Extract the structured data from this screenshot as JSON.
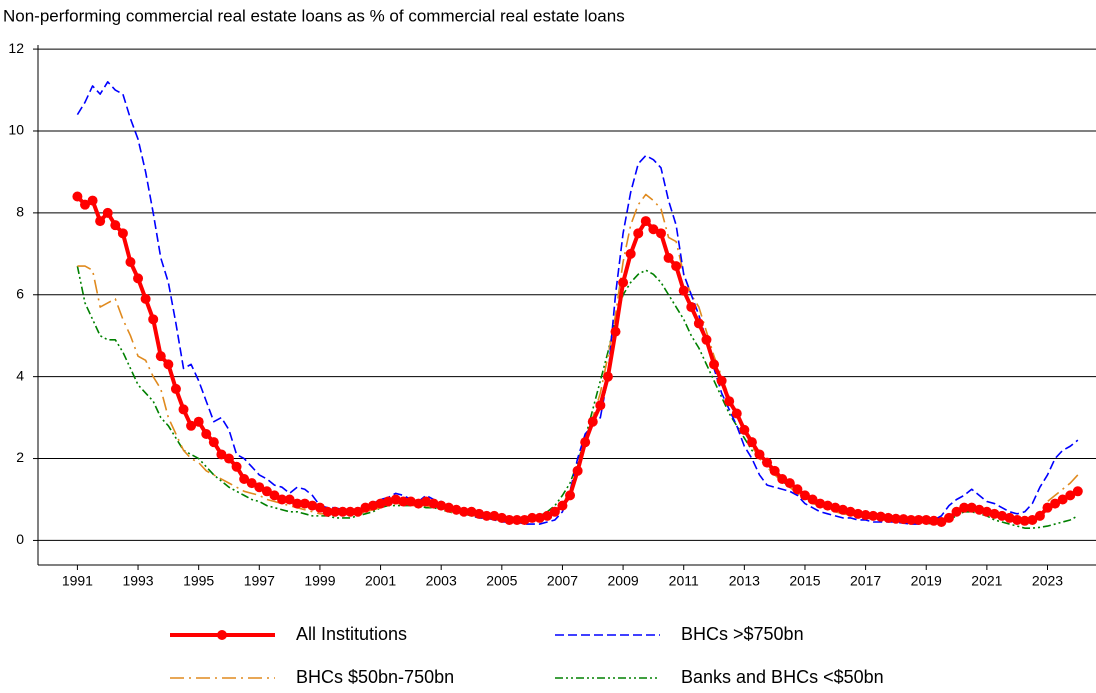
{
  "chart_data": {
    "type": "line",
    "title": "Non-performing commercial real estate loans as % of commercial real estate loans",
    "x": [
      1991,
      1991.25,
      1991.5,
      1991.75,
      1992,
      1992.25,
      1992.5,
      1992.75,
      1993,
      1993.25,
      1993.5,
      1993.75,
      1994,
      1994.25,
      1994.5,
      1994.75,
      1995,
      1995.25,
      1995.5,
      1995.75,
      1996,
      1996.25,
      1996.5,
      1996.75,
      1997,
      1997.25,
      1997.5,
      1997.75,
      1998,
      1998.25,
      1998.5,
      1998.75,
      1999,
      1999.25,
      1999.5,
      1999.75,
      2000,
      2000.25,
      2000.5,
      2000.75,
      2001,
      2001.25,
      2001.5,
      2001.75,
      2002,
      2002.25,
      2002.5,
      2002.75,
      2003,
      2003.25,
      2003.5,
      2003.75,
      2004,
      2004.25,
      2004.5,
      2004.75,
      2005,
      2005.25,
      2005.5,
      2005.75,
      2006,
      2006.25,
      2006.5,
      2006.75,
      2007,
      2007.25,
      2007.5,
      2007.75,
      2008,
      2008.25,
      2008.5,
      2008.75,
      2009,
      2009.25,
      2009.5,
      2009.75,
      2010,
      2010.25,
      2010.5,
      2010.75,
      2011,
      2011.25,
      2011.5,
      2011.75,
      2012,
      2012.25,
      2012.5,
      2012.75,
      2013,
      2013.25,
      2013.5,
      2013.75,
      2014,
      2014.25,
      2014.5,
      2014.75,
      2015,
      2015.25,
      2015.5,
      2015.75,
      2016,
      2016.25,
      2016.5,
      2016.75,
      2017,
      2017.25,
      2017.5,
      2017.75,
      2018,
      2018.25,
      2018.5,
      2018.75,
      2019,
      2019.25,
      2019.5,
      2019.75,
      2020,
      2020.25,
      2020.5,
      2020.75,
      2021,
      2021.25,
      2021.5,
      2021.75,
      2022,
      2022.25,
      2022.5,
      2022.75,
      2023,
      2023.25,
      2023.5,
      2023.75,
      2024
    ],
    "series": [
      {
        "name": "All Institutions",
        "color": "#ff0000",
        "line_style": "solid",
        "marker": "circle",
        "values": [
          8.4,
          8.2,
          8.3,
          7.8,
          8.0,
          7.7,
          7.5,
          6.8,
          6.4,
          5.9,
          5.4,
          4.5,
          4.3,
          3.7,
          3.2,
          2.8,
          2.9,
          2.6,
          2.4,
          2.1,
          2.0,
          1.8,
          1.5,
          1.4,
          1.3,
          1.2,
          1.1,
          1.0,
          1.0,
          0.9,
          0.9,
          0.85,
          0.8,
          0.7,
          0.7,
          0.7,
          0.7,
          0.7,
          0.8,
          0.85,
          0.9,
          0.95,
          1.0,
          0.95,
          0.95,
          0.9,
          0.95,
          0.9,
          0.85,
          0.8,
          0.75,
          0.7,
          0.7,
          0.65,
          0.6,
          0.6,
          0.55,
          0.5,
          0.5,
          0.5,
          0.55,
          0.55,
          0.6,
          0.7,
          0.85,
          1.1,
          1.7,
          2.4,
          2.9,
          3.3,
          4.0,
          5.1,
          6.3,
          7.0,
          7.5,
          7.8,
          7.6,
          7.5,
          6.9,
          6.7,
          6.1,
          5.7,
          5.3,
          4.9,
          4.3,
          3.9,
          3.4,
          3.1,
          2.7,
          2.4,
          2.1,
          1.9,
          1.7,
          1.5,
          1.4,
          1.25,
          1.1,
          1.0,
          0.9,
          0.85,
          0.8,
          0.75,
          0.7,
          0.65,
          0.62,
          0.6,
          0.58,
          0.55,
          0.53,
          0.52,
          0.5,
          0.5,
          0.5,
          0.48,
          0.45,
          0.55,
          0.7,
          0.8,
          0.8,
          0.75,
          0.7,
          0.65,
          0.6,
          0.55,
          0.5,
          0.48,
          0.5,
          0.6,
          0.8,
          0.9,
          1.0,
          1.1,
          1.2
        ]
      },
      {
        "name": "BHCs >$750bn",
        "color": "#0000ff",
        "line_style": "dashed",
        "values": [
          10.4,
          10.7,
          11.1,
          10.9,
          11.2,
          11.0,
          10.9,
          10.3,
          9.8,
          9.0,
          8.0,
          6.9,
          6.3,
          5.3,
          4.2,
          4.3,
          3.9,
          3.4,
          2.9,
          3.0,
          2.7,
          2.1,
          2.0,
          1.8,
          1.6,
          1.5,
          1.35,
          1.3,
          1.15,
          1.3,
          1.25,
          1.1,
          0.85,
          0.8,
          0.8,
          0.75,
          0.75,
          0.75,
          0.8,
          0.9,
          1.0,
          1.05,
          1.15,
          1.1,
          1.0,
          0.95,
          1.1,
          1.0,
          0.95,
          0.8,
          0.8,
          0.7,
          0.6,
          0.55,
          0.55,
          0.5,
          0.45,
          0.45,
          0.45,
          0.4,
          0.4,
          0.4,
          0.45,
          0.5,
          0.7,
          1.2,
          2.0,
          2.6,
          2.8,
          3.0,
          4.0,
          6.0,
          7.5,
          8.5,
          9.2,
          9.4,
          9.3,
          9.1,
          8.3,
          7.7,
          6.5,
          6.0,
          5.5,
          4.9,
          4.2,
          3.6,
          3.2,
          2.8,
          2.3,
          2.0,
          1.6,
          1.35,
          1.3,
          1.25,
          1.2,
          1.1,
          0.9,
          0.8,
          0.7,
          0.65,
          0.6,
          0.55,
          0.55,
          0.5,
          0.5,
          0.45,
          0.45,
          0.45,
          0.45,
          0.42,
          0.4,
          0.4,
          0.45,
          0.5,
          0.6,
          0.85,
          1.0,
          1.1,
          1.25,
          1.1,
          0.95,
          0.9,
          0.8,
          0.7,
          0.65,
          0.7,
          0.9,
          1.3,
          1.6,
          2.0,
          2.2,
          2.3,
          2.45
        ]
      },
      {
        "name": "BHCs $50bn-750bn",
        "color": "#e08a1e",
        "line_style": "dashdot",
        "values": [
          6.7,
          6.7,
          6.6,
          5.7,
          5.8,
          5.9,
          5.4,
          5.0,
          4.5,
          4.4,
          4.0,
          3.7,
          3.0,
          2.6,
          2.2,
          2.0,
          1.9,
          1.7,
          1.6,
          1.5,
          1.4,
          1.3,
          1.2,
          1.15,
          1.1,
          1.0,
          0.95,
          0.9,
          0.85,
          0.8,
          0.75,
          0.7,
          0.65,
          0.65,
          0.65,
          0.65,
          0.65,
          0.65,
          0.7,
          0.75,
          0.8,
          0.85,
          0.9,
          0.9,
          0.85,
          0.85,
          0.85,
          0.8,
          0.75,
          0.7,
          0.7,
          0.65,
          0.6,
          0.6,
          0.55,
          0.5,
          0.5,
          0.45,
          0.45,
          0.45,
          0.5,
          0.55,
          0.6,
          0.7,
          0.9,
          1.2,
          1.8,
          2.4,
          3.0,
          3.6,
          4.5,
          5.5,
          6.8,
          7.7,
          8.2,
          8.45,
          8.3,
          8.1,
          7.4,
          7.3,
          6.5,
          6.0,
          5.7,
          5.1,
          4.5,
          4.0,
          3.5,
          3.1,
          2.7,
          2.3,
          2.0,
          1.8,
          1.6,
          1.45,
          1.3,
          1.15,
          1.0,
          0.9,
          0.85,
          0.8,
          0.7,
          0.65,
          0.62,
          0.6,
          0.55,
          0.52,
          0.5,
          0.5,
          0.48,
          0.48,
          0.45,
          0.45,
          0.45,
          0.45,
          0.45,
          0.5,
          0.7,
          0.8,
          0.85,
          0.8,
          0.7,
          0.6,
          0.55,
          0.5,
          0.45,
          0.4,
          0.5,
          0.7,
          0.95,
          1.1,
          1.25,
          1.4,
          1.6
        ]
      },
      {
        "name": "Banks and BHCs <$50bn",
        "color": "#008000",
        "line_style": "dashdotdot",
        "values": [
          6.7,
          5.8,
          5.4,
          5.0,
          4.9,
          4.9,
          4.6,
          4.2,
          3.8,
          3.6,
          3.4,
          3.0,
          2.8,
          2.5,
          2.2,
          2.1,
          2.0,
          1.8,
          1.6,
          1.45,
          1.3,
          1.2,
          1.1,
          1.0,
          0.95,
          0.85,
          0.8,
          0.75,
          0.7,
          0.7,
          0.65,
          0.6,
          0.6,
          0.6,
          0.55,
          0.55,
          0.55,
          0.6,
          0.65,
          0.7,
          0.8,
          0.85,
          0.85,
          0.85,
          0.85,
          0.85,
          0.8,
          0.8,
          0.75,
          0.7,
          0.65,
          0.65,
          0.6,
          0.55,
          0.55,
          0.55,
          0.5,
          0.5,
          0.5,
          0.5,
          0.55,
          0.6,
          0.7,
          0.85,
          1.1,
          1.4,
          1.9,
          2.5,
          3.2,
          3.9,
          4.6,
          5.4,
          6.0,
          6.3,
          6.5,
          6.6,
          6.5,
          6.3,
          6.0,
          5.7,
          5.4,
          5.0,
          4.7,
          4.3,
          3.9,
          3.5,
          3.1,
          2.8,
          2.5,
          2.2,
          2.0,
          1.8,
          1.6,
          1.45,
          1.3,
          1.15,
          1.05,
          0.95,
          0.85,
          0.8,
          0.75,
          0.7,
          0.65,
          0.6,
          0.58,
          0.55,
          0.52,
          0.5,
          0.5,
          0.48,
          0.45,
          0.45,
          0.42,
          0.4,
          0.4,
          0.5,
          0.6,
          0.7,
          0.7,
          0.65,
          0.6,
          0.5,
          0.45,
          0.4,
          0.35,
          0.3,
          0.3,
          0.32,
          0.35,
          0.4,
          0.45,
          0.5,
          0.6
        ]
      }
    ],
    "xlim": [
      1989.7,
      2024.6
    ],
    "xticks": [
      1991,
      1993,
      1995,
      1997,
      1999,
      2001,
      2003,
      2005,
      2007,
      2009,
      2011,
      2013,
      2015,
      2017,
      2019,
      2021,
      2023
    ],
    "ylim": [
      -0.6,
      12.1
    ],
    "yticks": [
      0,
      2,
      4,
      6,
      8,
      10,
      12
    ],
    "grid": true,
    "legend": "bottom"
  }
}
